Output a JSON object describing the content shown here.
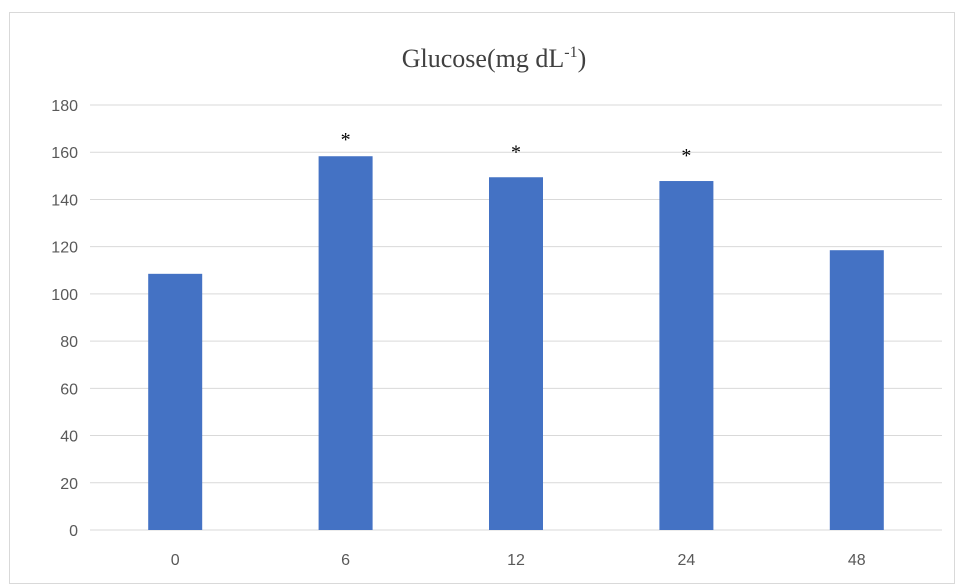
{
  "chart_data": {
    "type": "bar",
    "title": "Glucose(mg dL",
    "title_superscript": "-1",
    "title_suffix": ")",
    "categories": [
      "0",
      "6",
      "12",
      "24",
      "48"
    ],
    "values": [
      108.5,
      158.3,
      149.4,
      147.8,
      118.5
    ],
    "significance_markers": [
      "",
      "*",
      "*",
      "*",
      ""
    ],
    "ylim": [
      0,
      180
    ],
    "yticks": [
      "0",
      "20",
      "40",
      "60",
      "80",
      "100",
      "120",
      "140",
      "160",
      "180"
    ],
    "grid": true,
    "legend": "none",
    "bar_color": "#4472c4"
  }
}
